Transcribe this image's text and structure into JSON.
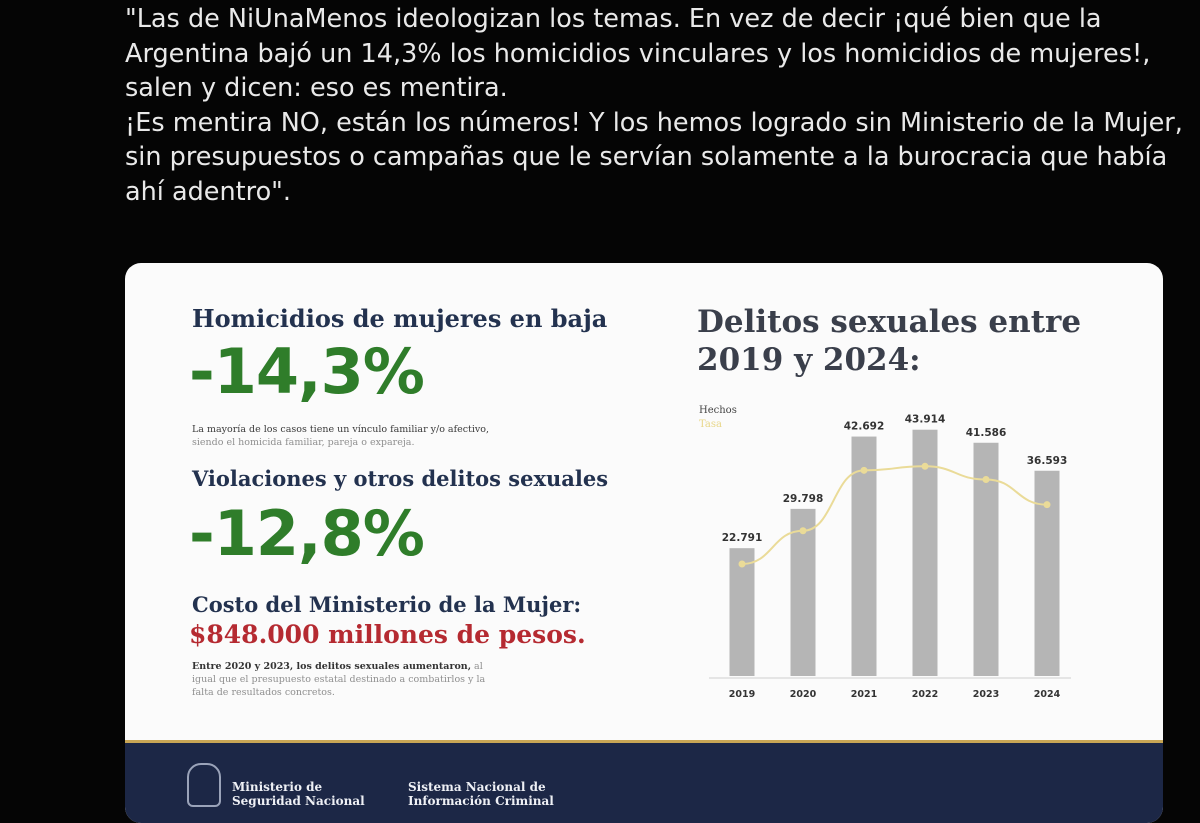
{
  "quote": {
    "p1": "\"Las de NiUnaMenos ideologizan los temas. En vez de decir ¡qué bien que la Argentina bajó un 14,3% los homicidios vinculares y los homicidios de mujeres!, salen y dicen: eso es mentira.",
    "p2": "¡Es mentira NO, están los números! Y los hemos logrado sin Ministerio de la Mujer, sin presupuestos o campañas que le servían solamente a la burocracia que había ahí adentro\"."
  },
  "infographic": {
    "homicides_heading": "Homicidios de mujeres en baja",
    "homicides_value": "-14,3%",
    "homicides_note_a": "La mayoría de los casos tiene un vínculo familiar y/o afectivo,",
    "homicides_note_b": "siendo el homicida familiar, pareja o expareja.",
    "violations_heading": "Violaciones y otros delitos sexuales",
    "violations_value": "-12,8%",
    "cost_heading": "Costo del Ministerio de la Mujer:",
    "cost_value": "$848.000 millones de pesos.",
    "cost_note_a": "Entre 2020 y 2023, los delitos sexuales aumentaron,",
    "cost_note_b": " al igual que el presupuesto estatal destinado a combatirlos y la falta de resultados concretos."
  },
  "chart_data": {
    "type": "bar",
    "title": "Delitos sexuales entre 2019 y 2024:",
    "categories": [
      "2019",
      "2020",
      "2021",
      "2022",
      "2023",
      "2024"
    ],
    "series": [
      {
        "name": "Hechos",
        "values": [
          22791,
          29798,
          42692,
          43914,
          41586,
          36593
        ],
        "labels": [
          "22.791",
          "29.798",
          "42.692",
          "43.914",
          "41.586",
          "36.593"
        ]
      },
      {
        "name": "Tasa",
        "type": "line",
        "values": [
          50.2,
          65.1,
          92.2,
          94.0,
          88.1,
          76.8
        ]
      }
    ],
    "ylim": [
      0,
      46000
    ],
    "grid": false,
    "legend_position": "top-left",
    "colors": {
      "bar": "#b5b5b5",
      "line": "#eadb98",
      "label": "#333333"
    }
  },
  "footer": {
    "org1": "Ministerio de Seguridad Nacional",
    "org2": "Sistema Nacional de Información Criminal"
  }
}
